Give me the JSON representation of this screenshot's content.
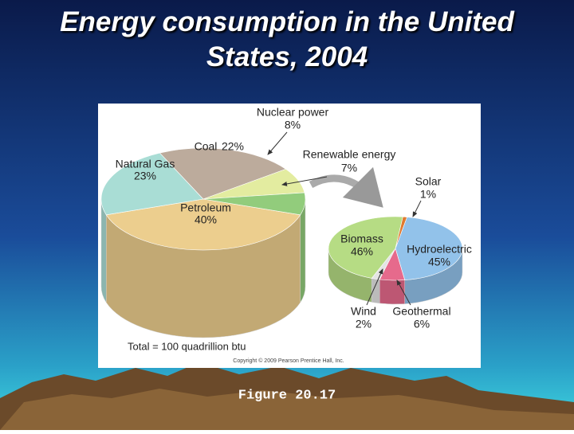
{
  "slide": {
    "title": "Energy consumption in the United States, 2004",
    "figure_label": "Figure 20.17"
  },
  "chart_data": [
    {
      "type": "pie",
      "categories": [
        "Petroleum",
        "Natural Gas",
        "Coal",
        "Nuclear power",
        "Renewable energy"
      ],
      "values": [
        40,
        23,
        22,
        8,
        7
      ],
      "value_labels": [
        "40%",
        "23%",
        "22%",
        "8%",
        "7%"
      ],
      "colors": [
        "#ecce8e",
        "#a9ddd5",
        "#bcab9c",
        "#e3eca0",
        "#92cc7c"
      ],
      "note": "Total = 100 quadrillion btu",
      "copyright": "Copyright © 2009 Pearson Prentice Hall, Inc."
    },
    {
      "type": "pie",
      "categories": [
        "Hydroelectric",
        "Geothermal",
        "Wind",
        "Biomass",
        "Solar"
      ],
      "values": [
        45,
        6,
        2,
        46,
        1
      ],
      "value_labels": [
        "45%",
        "6%",
        "2%",
        "46%",
        "1%"
      ],
      "colors": [
        "#92c2ea",
        "#e66a8c",
        "#e4e4e4",
        "#b6dc84",
        "#e07a30"
      ]
    }
  ]
}
